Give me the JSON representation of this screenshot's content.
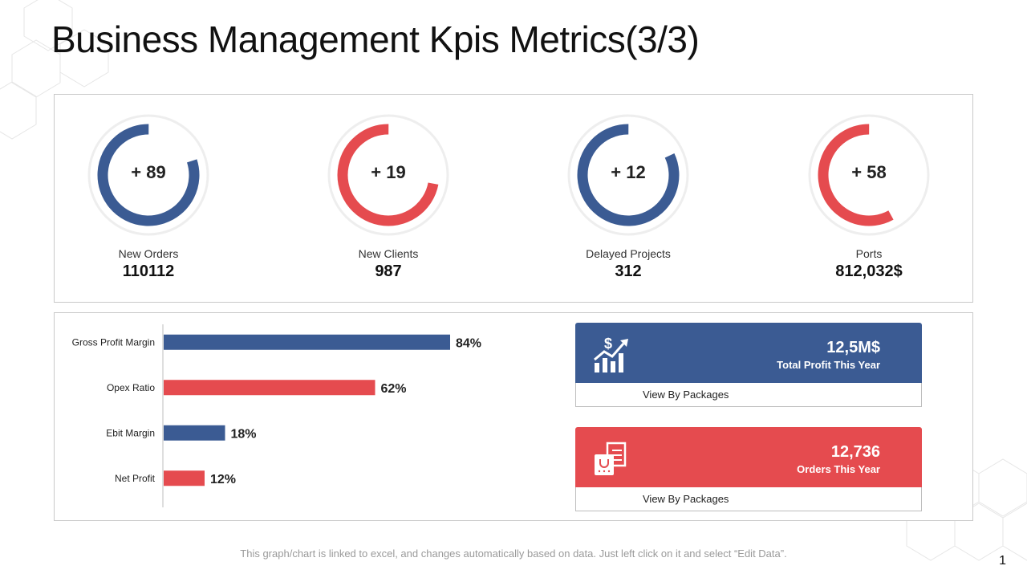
{
  "title": "Business Management Kpis Metrics(3/3)",
  "colors": {
    "blue": "#3b5b93",
    "red": "#e54b4f",
    "ring_bg": "#f2f2f2",
    "axis": "#bdbdbd"
  },
  "kpis": [
    {
      "ring_text": "+ 89",
      "label": "New Orders",
      "value": "110112",
      "color": "blue",
      "fill_fraction": 0.8
    },
    {
      "ring_text": "+ 19",
      "label": "New Clients",
      "value": "987",
      "color": "red",
      "fill_fraction": 0.72
    },
    {
      "ring_text": "+ 12",
      "label": "Delayed Projects",
      "value": "312",
      "color": "blue",
      "fill_fraction": 0.82
    },
    {
      "ring_text": "+ 58",
      "label": "Ports",
      "value": "812,032$",
      "color": "red",
      "fill_fraction": 0.58
    }
  ],
  "chart_data": {
    "type": "bar",
    "orientation": "horizontal",
    "categories": [
      "Gross Profit Margin",
      "Opex Ratio",
      "Ebit Margin",
      "Net Profit"
    ],
    "values": [
      84,
      62,
      18,
      12
    ],
    "data_labels": [
      "84%",
      "62%",
      "18%",
      "12%"
    ],
    "bar_colors": [
      "blue",
      "red",
      "blue",
      "red"
    ],
    "xlim": [
      0,
      100
    ],
    "title": "",
    "xlabel": "",
    "ylabel": "",
    "grid": false,
    "legend": "none"
  },
  "cards": [
    {
      "amount": "12,5M$",
      "caption": "Total Profit This Year",
      "link": "View By Packages",
      "color": "blue",
      "icon": "chart-growth-dollar-icon"
    },
    {
      "amount": "12,736",
      "caption": "Orders This Year",
      "link": "View By Packages",
      "color": "red",
      "icon": "shopping-bag-receipt-icon"
    }
  ],
  "footer_note": "This graph/chart is linked to excel, and changes automatically based on data. Just left click on it and select “Edit Data”.",
  "page_number": "1"
}
